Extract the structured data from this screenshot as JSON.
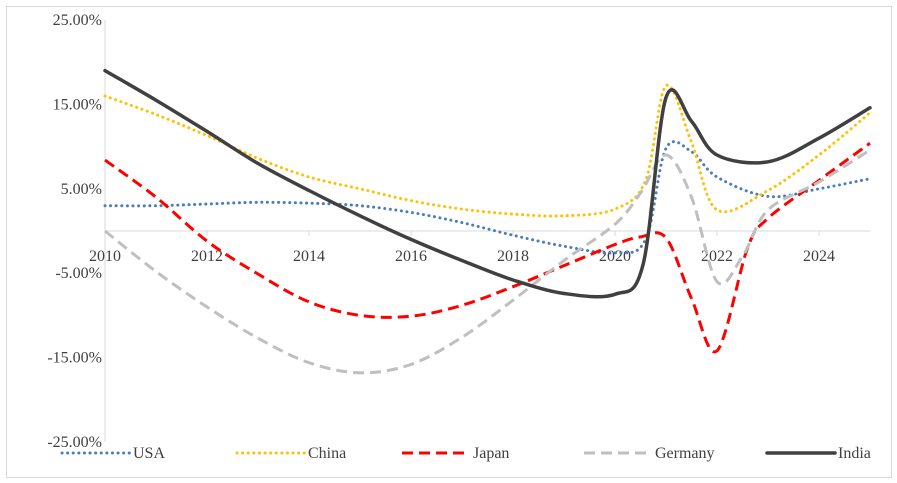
{
  "chart_data": {
    "type": "line",
    "title": "",
    "xlabel": "",
    "ylabel": "",
    "xlim": [
      2010,
      2025
    ],
    "ylim": [
      -25,
      25
    ],
    "x_ticks": [
      2010,
      2012,
      2014,
      2016,
      2018,
      2020,
      2022,
      2024
    ],
    "x_tick_labels": [
      "2010",
      "2012",
      "2014",
      "2016",
      "2018",
      "2020",
      "2022",
      "2024"
    ],
    "y_ticks": [
      25,
      15,
      5,
      -5,
      -15,
      -25
    ],
    "y_tick_labels": [
      "25.00%",
      "15.00%",
      "5.00%",
      "-5.00%",
      "-15.00%",
      "-25.00%"
    ],
    "grid": false,
    "legend_position": "bottom",
    "series": [
      {
        "name": "USA",
        "color": "#4a7ebb",
        "style": "dotted",
        "points": [
          [
            2010,
            3.0
          ],
          [
            2011,
            3.0
          ],
          [
            2012,
            3.2
          ],
          [
            2013,
            3.4
          ],
          [
            2014,
            3.3
          ],
          [
            2015,
            3.0
          ],
          [
            2016,
            2.2
          ],
          [
            2017,
            1.0
          ],
          [
            2018,
            -0.5
          ],
          [
            2019,
            -1.8
          ],
          [
            2020,
            -2.6
          ],
          [
            2020.6,
            -1.0
          ],
          [
            2021,
            9.8
          ],
          [
            2021.5,
            9.4
          ],
          [
            2022,
            6.4
          ],
          [
            2023,
            4.1
          ],
          [
            2024,
            5.0
          ],
          [
            2025,
            6.2
          ]
        ]
      },
      {
        "name": "China",
        "color": "#ffc000",
        "style": "dotted",
        "points": [
          [
            2010,
            16.0
          ],
          [
            2011,
            13.8
          ],
          [
            2012,
            11.3
          ],
          [
            2013,
            8.6
          ],
          [
            2014,
            6.4
          ],
          [
            2015,
            5.0
          ],
          [
            2016,
            3.6
          ],
          [
            2017,
            2.6
          ],
          [
            2018,
            2.0
          ],
          [
            2019,
            1.8
          ],
          [
            2020,
            2.6
          ],
          [
            2020.6,
            6.0
          ],
          [
            2021,
            17.2
          ],
          [
            2021.5,
            10.5
          ],
          [
            2022,
            2.5
          ],
          [
            2023,
            4.8
          ],
          [
            2024,
            9.0
          ],
          [
            2025,
            14.0
          ]
        ]
      },
      {
        "name": "Japan",
        "color": "#ff0000",
        "style": "dashed",
        "points": [
          [
            2010,
            8.4
          ],
          [
            2011,
            4.0
          ],
          [
            2012,
            -1.2
          ],
          [
            2013,
            -5.1
          ],
          [
            2014,
            -8.4
          ],
          [
            2015,
            -10.0
          ],
          [
            2016,
            -10.1
          ],
          [
            2017,
            -8.8
          ],
          [
            2018,
            -6.6
          ],
          [
            2019,
            -4.1
          ],
          [
            2020,
            -1.6
          ],
          [
            2020.5,
            -0.7
          ],
          [
            2021,
            -0.8
          ],
          [
            2021.5,
            -8.0
          ],
          [
            2022,
            -14.2
          ],
          [
            2022.6,
            -2.0
          ],
          [
            2023,
            1.5
          ],
          [
            2024,
            6.0
          ],
          [
            2025,
            10.4
          ]
        ]
      },
      {
        "name": "Germany",
        "color": "#bfbfbf",
        "style": "dashed",
        "points": [
          [
            2010,
            0.0
          ],
          [
            2011,
            -4.8
          ],
          [
            2012,
            -9.0
          ],
          [
            2013,
            -12.7
          ],
          [
            2014,
            -15.6
          ],
          [
            2015,
            -16.8
          ],
          [
            2016,
            -15.8
          ],
          [
            2017,
            -12.6
          ],
          [
            2018,
            -8.2
          ],
          [
            2019,
            -3.5
          ],
          [
            2020,
            0.8
          ],
          [
            2020.5,
            4.5
          ],
          [
            2021,
            9.0
          ],
          [
            2021.5,
            4.0
          ],
          [
            2022,
            -6.0
          ],
          [
            2022.5,
            -3.0
          ],
          [
            2023,
            2.5
          ],
          [
            2024,
            5.8
          ],
          [
            2025,
            9.6
          ]
        ]
      },
      {
        "name": "India",
        "color": "#404040",
        "style": "solid",
        "points": [
          [
            2010,
            19.0
          ],
          [
            2011,
            15.5
          ],
          [
            2012,
            11.8
          ],
          [
            2013,
            8.0
          ],
          [
            2014,
            4.8
          ],
          [
            2015,
            1.8
          ],
          [
            2016,
            -1.0
          ],
          [
            2017,
            -3.5
          ],
          [
            2018,
            -5.8
          ],
          [
            2019,
            -7.4
          ],
          [
            2020,
            -7.5
          ],
          [
            2020.55,
            -4.0
          ],
          [
            2021,
            15.8
          ],
          [
            2021.5,
            13.0
          ],
          [
            2022,
            9.0
          ],
          [
            2023,
            8.2
          ],
          [
            2024,
            11.0
          ],
          [
            2025,
            14.6
          ]
        ]
      }
    ]
  }
}
